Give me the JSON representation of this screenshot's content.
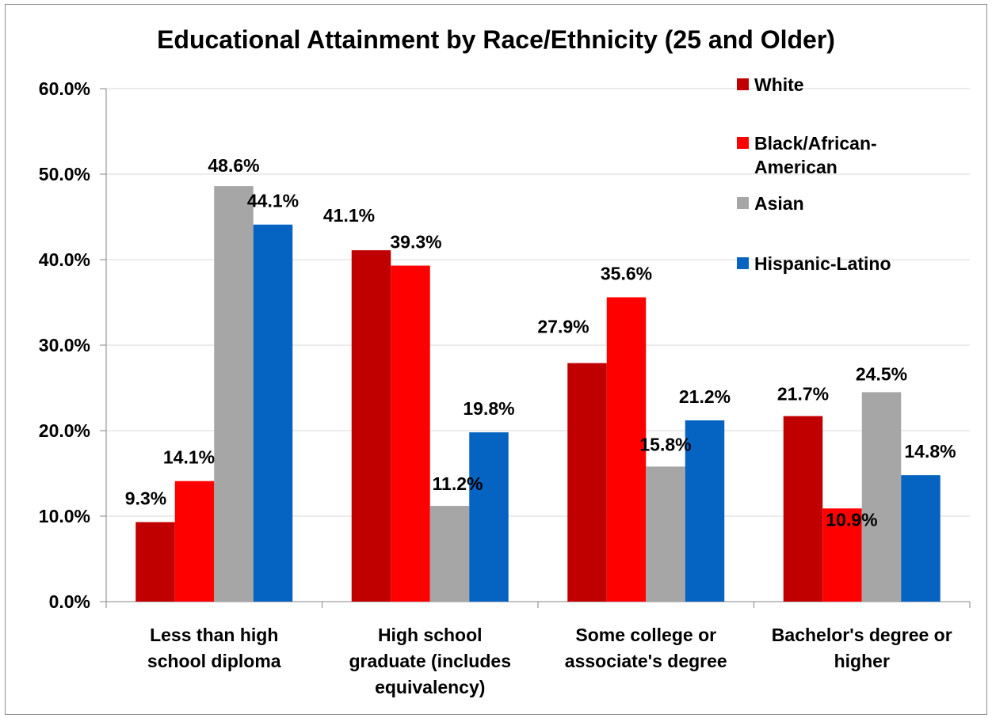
{
  "chart_data": {
    "type": "bar",
    "title": "Educational Attainment by Race/Ethnicity (25 and Older)",
    "xlabel": "",
    "ylabel": "",
    "ylim": [
      0,
      60
    ],
    "y_ticks": [
      "0.0%",
      "10.0%",
      "20.0%",
      "30.0%",
      "40.0%",
      "50.0%",
      "60.0%"
    ],
    "categories": [
      [
        "Less than high",
        "school diploma"
      ],
      [
        "High school",
        "graduate (includes",
        "equivalency)"
      ],
      [
        "Some college or",
        "associate's degree"
      ],
      [
        "Bachelor's degree or",
        "higher"
      ]
    ],
    "series": [
      {
        "name": "White",
        "legend_lines": [
          "White"
        ],
        "color": "#c00000",
        "values": [
          9.3,
          41.1,
          27.9,
          21.7
        ],
        "labels": [
          "9.3%",
          "41.1%",
          "27.9%",
          "21.7%"
        ]
      },
      {
        "name": "Black/African-American",
        "legend_lines": [
          "Black/African-",
          "American"
        ],
        "color": "#ff0000",
        "values": [
          14.1,
          39.3,
          35.6,
          10.9
        ],
        "labels": [
          "14.1%",
          "39.3%",
          "35.6%",
          "10.9%"
        ]
      },
      {
        "name": "Asian",
        "legend_lines": [
          "Asian"
        ],
        "color": "#a6a6a6",
        "values": [
          48.6,
          11.2,
          15.8,
          24.5
        ],
        "labels": [
          "48.6%",
          "11.2%",
          "15.8%",
          "24.5%"
        ]
      },
      {
        "name": "Hispanic-Latino",
        "legend_lines": [
          "Hispanic-Latino"
        ],
        "color": "#0563c1",
        "values": [
          44.1,
          19.8,
          21.2,
          14.8
        ],
        "labels": [
          "44.1%",
          "19.8%",
          "21.2%",
          "14.8%"
        ]
      }
    ],
    "grid": true,
    "legend_position": "top-right"
  }
}
